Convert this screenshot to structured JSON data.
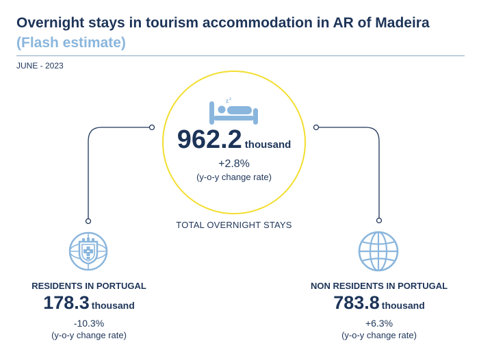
{
  "header": {
    "title": "Overnight stays in tourism accommodation in AR of Madeira",
    "subtitle": "(Flash estimate)",
    "period": "JUNE - 2023"
  },
  "total": {
    "value": "962.2",
    "unit": "thousand",
    "change": "+2.8%",
    "change_note": "(y-o-y change rate)",
    "label": "TOTAL OVERNIGHT STAYS",
    "icon": "bed-icon"
  },
  "residents": {
    "label": "RESIDENTS IN PORTUGAL",
    "value": "178.3",
    "unit": "thousand",
    "change": "-10.3%",
    "change_note": "(y-o-y change rate)",
    "icon": "portugal-coat-of-arms-icon"
  },
  "non_residents": {
    "label": "NON RESIDENTS IN PORTUGAL",
    "value": "783.8",
    "unit": "thousand",
    "change": "+6.3%",
    "change_note": "(y-o-y change rate)",
    "icon": "globe-icon"
  },
  "colors": {
    "navy": "#1d3458",
    "light_blue": "#8ab6dd",
    "circle_yellow": "#f2de2e"
  }
}
